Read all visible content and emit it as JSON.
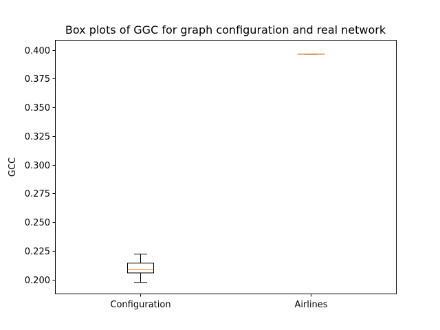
{
  "chart_data": {
    "type": "box",
    "title": "Box plots of GGC for graph configuration and real network",
    "xlabel": "",
    "ylabel": "GCC",
    "categories": [
      "Configuration",
      "Airlines"
    ],
    "ylim": [
      0.1878,
      0.4088
    ],
    "yticks": [
      0.2,
      0.225,
      0.25,
      0.275,
      0.3,
      0.325,
      0.35,
      0.375,
      0.4
    ],
    "ytick_labels": [
      "0.200",
      "0.225",
      "0.250",
      "0.275",
      "0.300",
      "0.325",
      "0.350",
      "0.375",
      "0.400"
    ],
    "grid": false,
    "boxes": [
      {
        "name": "Configuration",
        "whislo": 0.1975,
        "q1": 0.2058,
        "med": 0.2088,
        "q3": 0.2143,
        "whishi": 0.2222
      },
      {
        "name": "Airlines",
        "whislo": 0.3964,
        "q1": 0.3964,
        "med": 0.3964,
        "q3": 0.3964,
        "whishi": 0.3964
      }
    ],
    "colors": {
      "box": "#000000",
      "median": "#ff7f0e",
      "axes": "#000000"
    }
  }
}
